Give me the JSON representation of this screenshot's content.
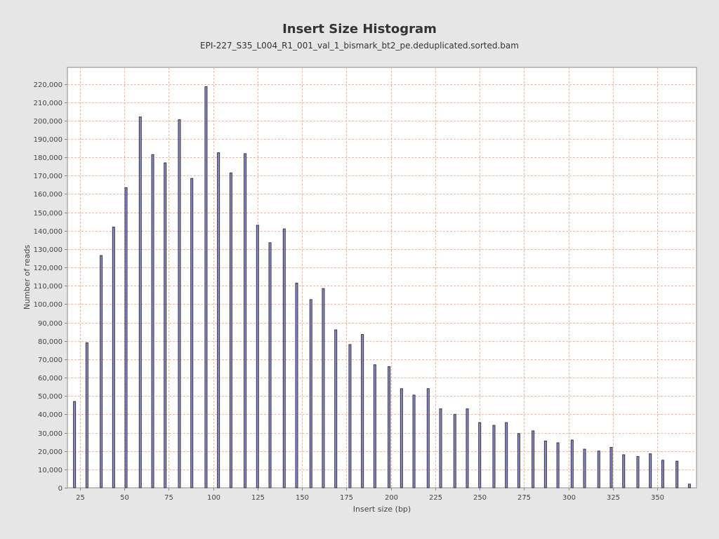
{
  "chart_data": {
    "type": "bar",
    "title": "Insert Size Histogram",
    "subtitle": "EPI-227_S35_L004_R1_001_val_1_bismark_bt2_pe.deduplicated.sorted.bam",
    "xlabel": "Insert size (bp)",
    "ylabel": "Number of reads",
    "xlim": [
      18,
      372
    ],
    "ylim": [
      0,
      229000
    ],
    "xticks": [
      25,
      50,
      75,
      100,
      125,
      150,
      175,
      200,
      225,
      250,
      275,
      300,
      325,
      350
    ],
    "yticks": [
      0,
      10000,
      20000,
      30000,
      40000,
      50000,
      60000,
      70000,
      80000,
      90000,
      100000,
      110000,
      120000,
      130000,
      140000,
      150000,
      160000,
      170000,
      180000,
      190000,
      200000,
      210000,
      220000
    ],
    "ytick_labels": [
      "0",
      "10,000",
      "20,000",
      "30,000",
      "40,000",
      "50,000",
      "60,000",
      "70,000",
      "80,000",
      "90,000",
      "100,000",
      "110,000",
      "120,000",
      "130,000",
      "140,000",
      "150,000",
      "160,000",
      "170,000",
      "180,000",
      "190,000",
      "200,000",
      "210,000",
      "220,000"
    ],
    "grid": true,
    "bar_color": "#8a8ad8",
    "bar_edge_color": "#333333",
    "grid_color": "#f0b89a",
    "points": [
      {
        "x": 22,
        "y": 47000
      },
      {
        "x": 29,
        "y": 79000
      },
      {
        "x": 37,
        "y": 126500
      },
      {
        "x": 44,
        "y": 142000
      },
      {
        "x": 51,
        "y": 163500
      },
      {
        "x": 59,
        "y": 202000
      },
      {
        "x": 66,
        "y": 181500
      },
      {
        "x": 73,
        "y": 177000
      },
      {
        "x": 81,
        "y": 200500
      },
      {
        "x": 88,
        "y": 168500
      },
      {
        "x": 96,
        "y": 218500
      },
      {
        "x": 103,
        "y": 182500
      },
      {
        "x": 110,
        "y": 171500
      },
      {
        "x": 118,
        "y": 182000
      },
      {
        "x": 125,
        "y": 143000
      },
      {
        "x": 132,
        "y": 133500
      },
      {
        "x": 140,
        "y": 141000
      },
      {
        "x": 147,
        "y": 111500
      },
      {
        "x": 155,
        "y": 102500
      },
      {
        "x": 162,
        "y": 108500
      },
      {
        "x": 169,
        "y": 86000
      },
      {
        "x": 177,
        "y": 78000
      },
      {
        "x": 184,
        "y": 83500
      },
      {
        "x": 191,
        "y": 67000
      },
      {
        "x": 199,
        "y": 66000
      },
      {
        "x": 206,
        "y": 54000
      },
      {
        "x": 213,
        "y": 50500
      },
      {
        "x": 221,
        "y": 54000
      },
      {
        "x": 228,
        "y": 43000
      },
      {
        "x": 236,
        "y": 40000
      },
      {
        "x": 243,
        "y": 43000
      },
      {
        "x": 250,
        "y": 35500
      },
      {
        "x": 258,
        "y": 34000
      },
      {
        "x": 265,
        "y": 35500
      },
      {
        "x": 272,
        "y": 29500
      },
      {
        "x": 280,
        "y": 31000
      },
      {
        "x": 287,
        "y": 25500
      },
      {
        "x": 294,
        "y": 24500
      },
      {
        "x": 302,
        "y": 26000
      },
      {
        "x": 309,
        "y": 21000
      },
      {
        "x": 317,
        "y": 20000
      },
      {
        "x": 324,
        "y": 22000
      },
      {
        "x": 331,
        "y": 18000
      },
      {
        "x": 339,
        "y": 17000
      },
      {
        "x": 346,
        "y": 18500
      },
      {
        "x": 353,
        "y": 15000
      },
      {
        "x": 361,
        "y": 14500
      },
      {
        "x": 368,
        "y": 2000
      }
    ]
  }
}
